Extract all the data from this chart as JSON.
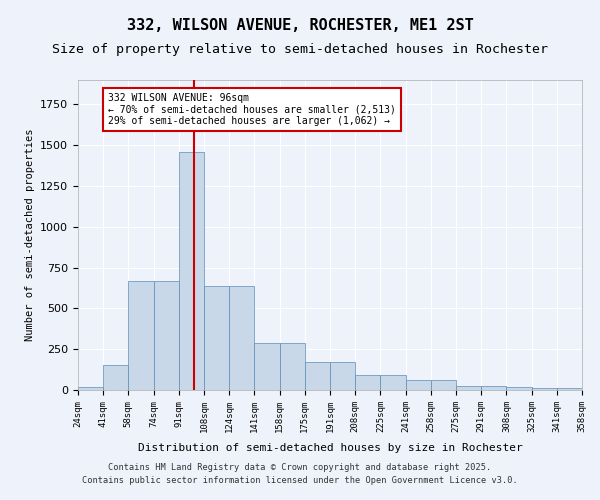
{
  "title": "332, WILSON AVENUE, ROCHESTER, ME1 2ST",
  "subtitle": "Size of property relative to semi-detached houses in Rochester",
  "xlabel": "Distribution of semi-detached houses by size in Rochester",
  "ylabel": "Number of semi-detached properties",
  "bin_labels": [
    "24sqm",
    "41sqm",
    "58sqm",
    "74sqm",
    "91sqm",
    "108sqm",
    "124sqm",
    "141sqm",
    "158sqm",
    "175sqm",
    "191sqm",
    "208sqm",
    "225sqm",
    "241sqm",
    "258sqm",
    "275sqm",
    "291sqm",
    "308sqm",
    "325sqm",
    "341sqm",
    "358sqm"
  ],
  "bar_heights": [
    20,
    155,
    670,
    670,
    1460,
    640,
    640,
    290,
    290,
    170,
    170,
    95,
    95,
    60,
    60,
    25,
    25,
    18,
    10,
    10
  ],
  "bar_color": "#c8d8e8",
  "bar_edge_color": "#5b8db8",
  "red_line_x": 4.6,
  "annotation_text": "332 WILSON AVENUE: 96sqm\n← 70% of semi-detached houses are smaller (2,513)\n29% of semi-detached houses are larger (1,062) →",
  "annotation_box_edge": "#cc0000",
  "footer_line1": "Contains HM Land Registry data © Crown copyright and database right 2025.",
  "footer_line2": "Contains public sector information licensed under the Open Government Licence v3.0.",
  "ylim": [
    0,
    1900
  ],
  "background_color": "#eef2fa",
  "plot_background": "#eef2fa",
  "grid_color": "#ffffff",
  "title_fontsize": 11,
  "subtitle_fontsize": 9.5
}
